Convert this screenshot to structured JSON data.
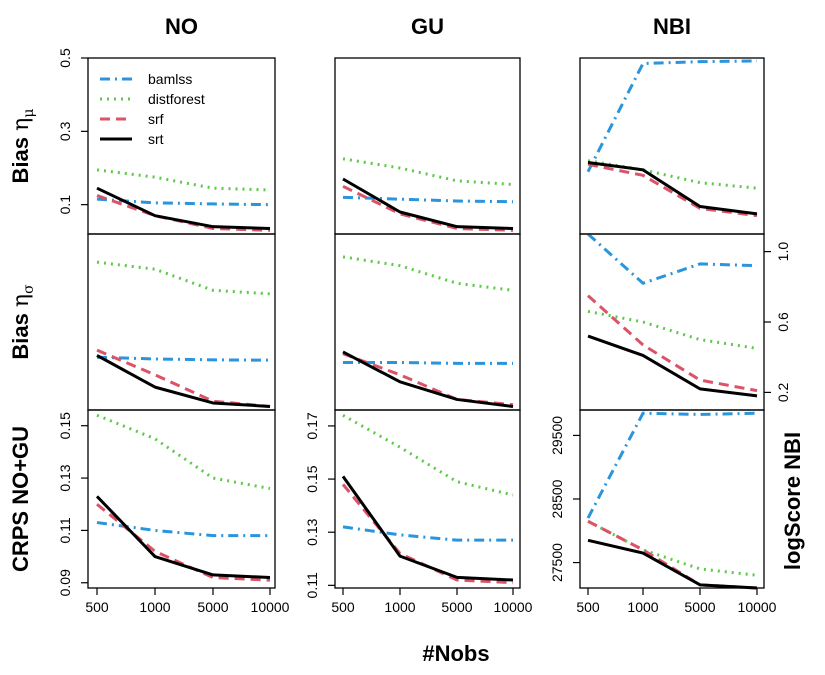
{
  "chart_data": {
    "type": "line",
    "x_labels": [
      "500",
      "1000",
      "5000",
      "10000"
    ],
    "x_axis_title": "#Nobs",
    "columns": [
      {
        "key": "NO",
        "title": "NO"
      },
      {
        "key": "GU",
        "title": "GU"
      },
      {
        "key": "NBI",
        "title": "NBI"
      }
    ],
    "rows": [
      {
        "key": "mu",
        "title_main": "Bias ",
        "title_greek": "η",
        "title_sub": "μ"
      },
      {
        "key": "sigma",
        "title_main": "Bias ",
        "title_greek": "η",
        "title_sub": "σ"
      },
      {
        "key": "score",
        "title": "CRPS NO+GU",
        "title_right": "logScore NBI"
      }
    ],
    "series": [
      {
        "name": "bamlss",
        "color": "#2A95DD",
        "dash": "10 5 2 5"
      },
      {
        "name": "distforest",
        "color": "#5DC948",
        "dash": "2 5"
      },
      {
        "name": "srf",
        "color": "#DB5367",
        "dash": "10 6"
      },
      {
        "name": "srt",
        "color": "#000000",
        "dash": ""
      }
    ],
    "panels": [
      {
        "row": "mu",
        "col": "NO",
        "ylim": [
          0.02,
          0.5
        ],
        "yticks": [
          "0.1",
          "0.3",
          "0.5"
        ],
        "ytick_values": [
          0.1,
          0.3,
          0.5
        ],
        "axis_side": "left",
        "legend": true,
        "values": {
          "bamlss": [
            0.115,
            0.105,
            0.102,
            0.1
          ],
          "distforest": [
            0.195,
            0.175,
            0.145,
            0.14
          ],
          "srf": [
            0.125,
            0.07,
            0.035,
            0.03
          ],
          "srt": [
            0.145,
            0.07,
            0.04,
            0.035
          ]
        }
      },
      {
        "row": "mu",
        "col": "GU",
        "ylim": [
          0.02,
          0.5
        ],
        "yticks": [],
        "ytick_values": [],
        "axis_side": "none",
        "legend": false,
        "values": {
          "bamlss": [
            0.12,
            0.115,
            0.11,
            0.108
          ],
          "distforest": [
            0.225,
            0.2,
            0.165,
            0.155
          ],
          "srf": [
            0.15,
            0.075,
            0.035,
            0.03
          ],
          "srt": [
            0.17,
            0.08,
            0.04,
            0.035
          ]
        }
      },
      {
        "row": "mu",
        "col": "NBI",
        "ylim": [
          0.02,
          0.5
        ],
        "yticks": [],
        "ytick_values": [],
        "axis_side": "none",
        "legend": false,
        "values": {
          "bamlss": [
            0.19,
            0.485,
            0.49,
            0.492
          ],
          "distforest": [
            0.22,
            0.195,
            0.16,
            0.145
          ],
          "srf": [
            0.21,
            0.18,
            0.09,
            0.07
          ],
          "srt": [
            0.215,
            0.195,
            0.095,
            0.075
          ]
        }
      },
      {
        "row": "sigma",
        "col": "NO",
        "ylim": [
          0.1,
          1.1
        ],
        "yticks": [],
        "ytick_values": [],
        "axis_side": "none",
        "legend": false,
        "values": {
          "bamlss": [
            0.4,
            0.39,
            0.385,
            0.383
          ],
          "distforest": [
            0.94,
            0.9,
            0.78,
            0.76
          ],
          "srf": [
            0.44,
            0.3,
            0.15,
            0.12
          ],
          "srt": [
            0.41,
            0.23,
            0.14,
            0.12
          ]
        }
      },
      {
        "row": "sigma",
        "col": "GU",
        "ylim": [
          0.1,
          1.1
        ],
        "yticks": [],
        "ytick_values": [],
        "axis_side": "none",
        "legend": false,
        "values": {
          "bamlss": [
            0.37,
            0.37,
            0.365,
            0.365
          ],
          "distforest": [
            0.97,
            0.92,
            0.82,
            0.78
          ],
          "srf": [
            0.42,
            0.3,
            0.16,
            0.13
          ],
          "srt": [
            0.43,
            0.26,
            0.16,
            0.12
          ]
        }
      },
      {
        "row": "sigma",
        "col": "NBI",
        "ylim": [
          0.1,
          1.1
        ],
        "yticks": [
          "0.2",
          "0.6",
          "1.0"
        ],
        "ytick_values": [
          0.2,
          0.6,
          1.0
        ],
        "axis_side": "right",
        "legend": false,
        "values": {
          "bamlss": [
            1.1,
            0.82,
            0.93,
            0.92
          ],
          "distforest": [
            0.66,
            0.6,
            0.5,
            0.45
          ],
          "srf": [
            0.75,
            0.47,
            0.27,
            0.21
          ],
          "srt": [
            0.52,
            0.41,
            0.22,
            0.18
          ]
        }
      },
      {
        "row": "score",
        "col": "NO",
        "ylim": [
          0.088,
          0.156
        ],
        "yticks": [
          "0.09",
          "0.11",
          "0.13",
          "0.15"
        ],
        "ytick_values": [
          0.09,
          0.11,
          0.13,
          0.15
        ],
        "axis_side": "left",
        "legend": false,
        "values": {
          "bamlss": [
            0.113,
            0.11,
            0.108,
            0.108
          ],
          "distforest": [
            0.154,
            0.145,
            0.13,
            0.126
          ],
          "srf": [
            0.12,
            0.102,
            0.092,
            0.091
          ],
          "srt": [
            0.123,
            0.1,
            0.093,
            0.092
          ]
        }
      },
      {
        "row": "score",
        "col": "GU",
        "ylim": [
          0.109,
          0.176
        ],
        "yticks": [
          "0.11",
          "0.13",
          "0.15",
          "0.17"
        ],
        "ytick_values": [
          0.11,
          0.13,
          0.15,
          0.17
        ],
        "axis_side": "left",
        "legend": false,
        "values": {
          "bamlss": [
            0.132,
            0.129,
            0.127,
            0.127
          ],
          "distforest": [
            0.174,
            0.162,
            0.149,
            0.144
          ],
          "srf": [
            0.148,
            0.122,
            0.112,
            0.111
          ],
          "srt": [
            0.151,
            0.121,
            0.113,
            0.112
          ]
        }
      },
      {
        "row": "score",
        "col": "NBI",
        "ylim": [
          27100,
          29900
        ],
        "yticks": [
          "27500",
          "28500",
          "29500"
        ],
        "ytick_values": [
          27500,
          28500,
          29500
        ],
        "axis_side": "left",
        "legend": false,
        "values": {
          "bamlss": [
            28200,
            29850,
            29830,
            29850
          ],
          "distforest": [
            28150,
            27700,
            27400,
            27300
          ],
          "srf": [
            28150,
            27700,
            27150,
            27100
          ],
          "srt": [
            27850,
            27650,
            27150,
            27100
          ]
        }
      }
    ]
  }
}
